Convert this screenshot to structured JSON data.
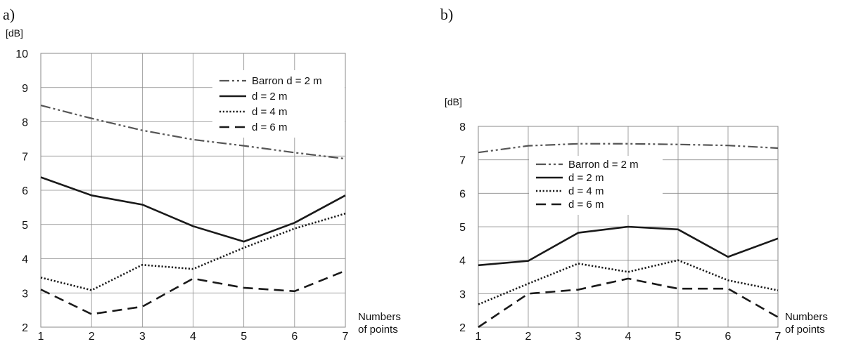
{
  "chart_data": [
    {
      "type": "line",
      "panel_label": "a)",
      "ylabel": "[dB]",
      "xlabel": [
        "Numbers",
        "of points"
      ],
      "x": [
        1,
        2,
        3,
        4,
        5,
        6,
        7
      ],
      "ylim": [
        2,
        10
      ],
      "yticks": [
        2,
        3,
        4,
        5,
        6,
        7,
        8,
        9,
        10
      ],
      "grid": true,
      "legend_position": "top-right",
      "series": [
        {
          "name": "Barron d = 2 m",
          "style": "dashdotdot",
          "color": "#555555",
          "values": [
            8.48,
            8.1,
            7.75,
            7.48,
            7.3,
            7.1,
            6.92
          ]
        },
        {
          "name": "d = 2 m",
          "style": "solid",
          "color": "#1a1a1a",
          "values": [
            6.38,
            5.85,
            5.58,
            4.95,
            4.5,
            5.05,
            5.85
          ]
        },
        {
          "name": "d = 4 m",
          "style": "dotted",
          "color": "#1a1a1a",
          "values": [
            3.45,
            3.08,
            3.82,
            3.7,
            4.32,
            4.88,
            5.32
          ]
        },
        {
          "name": "d = 6 m",
          "style": "dashed",
          "color": "#1a1a1a",
          "values": [
            3.1,
            2.38,
            2.6,
            3.42,
            3.15,
            3.05,
            3.65
          ]
        }
      ]
    },
    {
      "type": "line",
      "panel_label": "b)",
      "ylabel": "[dB]",
      "xlabel": [
        "Numbers",
        "of points"
      ],
      "x": [
        1,
        2,
        3,
        4,
        5,
        6,
        7
      ],
      "ylim": [
        2,
        8
      ],
      "yticks": [
        2,
        3,
        4,
        5,
        6,
        7,
        8
      ],
      "grid": true,
      "legend_position": "upper-left",
      "series": [
        {
          "name": "Barron d = 2 m",
          "style": "dashdotdot",
          "color": "#555555",
          "values": [
            7.22,
            7.42,
            7.48,
            7.48,
            7.46,
            7.43,
            7.35
          ]
        },
        {
          "name": "d = 2 m",
          "style": "solid",
          "color": "#1a1a1a",
          "values": [
            3.85,
            3.98,
            4.82,
            5.0,
            4.92,
            4.1,
            4.65
          ]
        },
        {
          "name": "d = 4 m",
          "style": "dotted",
          "color": "#1a1a1a",
          "values": [
            2.68,
            3.3,
            3.9,
            3.65,
            4.0,
            3.4,
            3.1
          ]
        },
        {
          "name": "d = 6 m",
          "style": "dashed",
          "color": "#1a1a1a",
          "values": [
            2.0,
            3.0,
            3.12,
            3.45,
            3.15,
            3.15,
            2.3
          ]
        }
      ]
    }
  ]
}
